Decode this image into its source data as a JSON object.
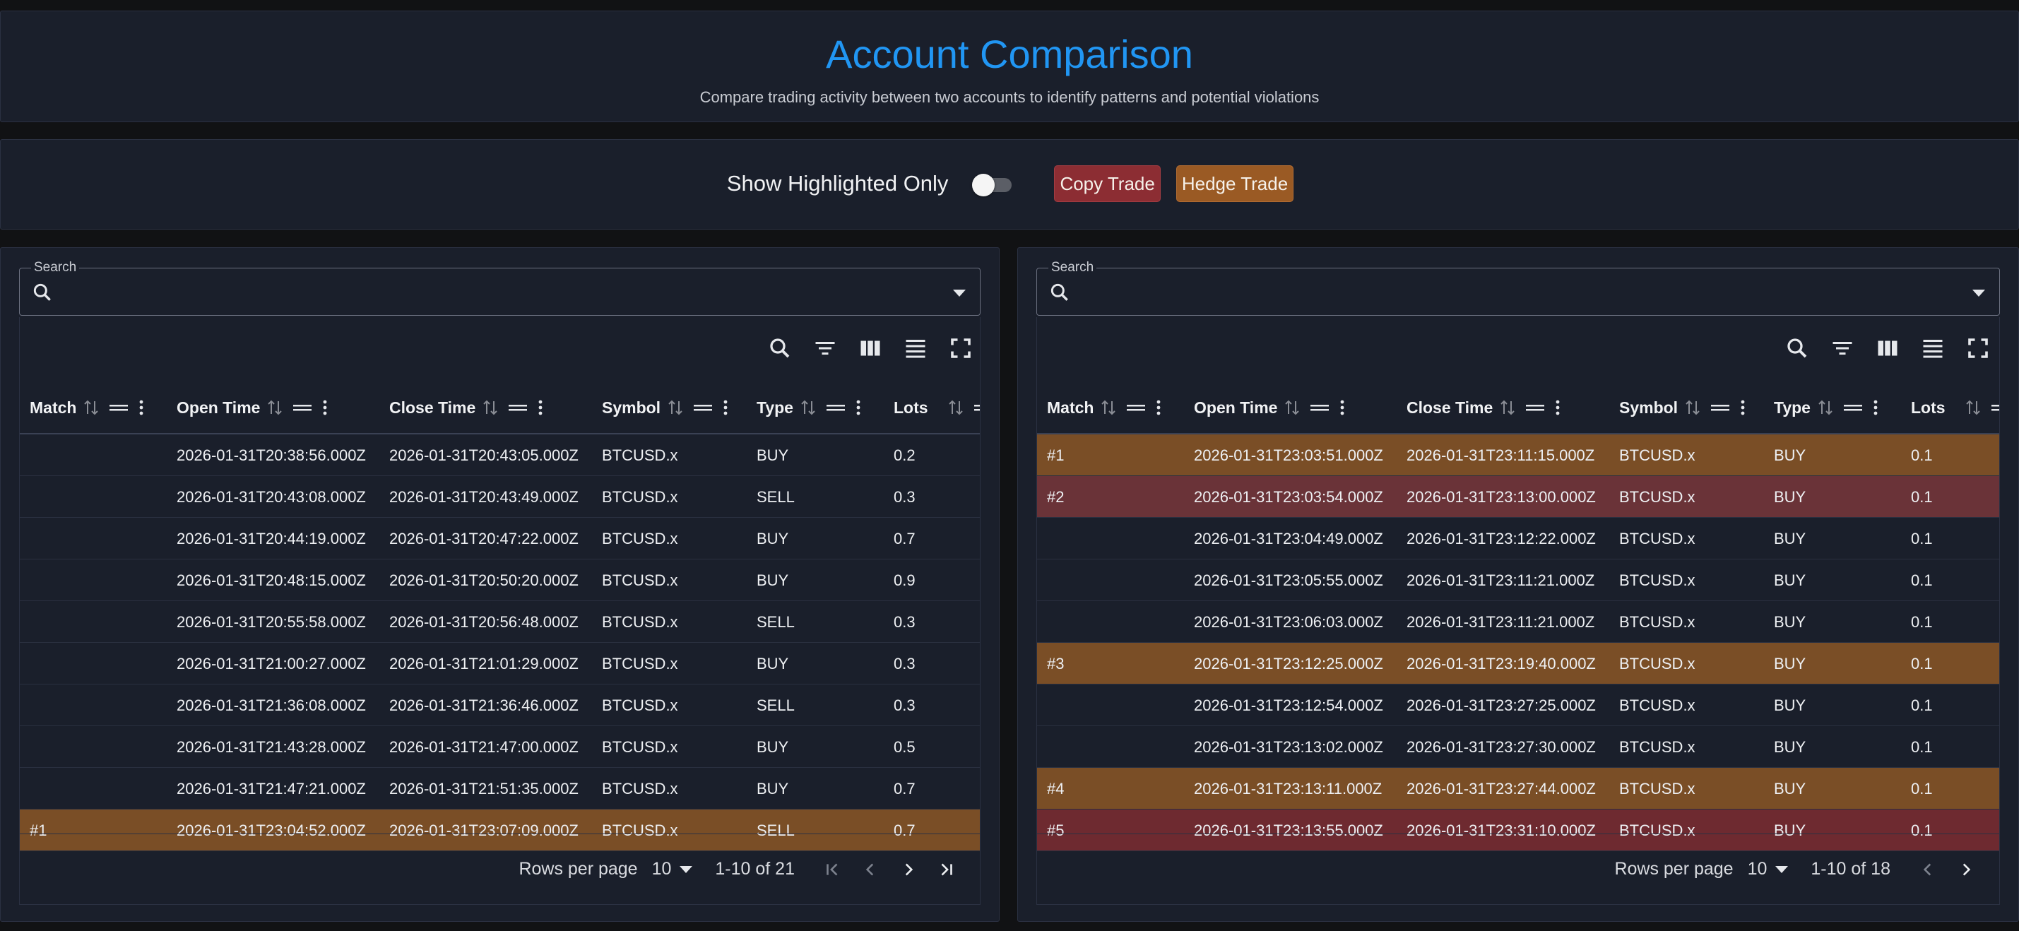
{
  "header": {
    "title": "Account Comparison",
    "subtitle": "Compare trading activity between two accounts to identify patterns and potential violations"
  },
  "controls": {
    "show_highlighted_label": "Show Highlighted Only",
    "show_highlighted_on": false,
    "legend": [
      {
        "label": "Copy Trade",
        "color": "#8c2d33"
      },
      {
        "label": "Hedge Trade",
        "color": "#9a5a24"
      }
    ]
  },
  "colors": {
    "accent": "#2196f3",
    "copy_row": "#6a3338",
    "hedge_row": "#7a4e26",
    "panel_bg": "#1a1f2b"
  },
  "columns": [
    "Match",
    "Open Time",
    "Close Time",
    "Symbol",
    "Type",
    "Lots"
  ],
  "left": {
    "search_label": "Search",
    "rows_per_page_label": "Rows per page",
    "rows_per_page": "10",
    "range": "1-10 of 21",
    "rows": [
      {
        "match": "",
        "open": "2026-01-31T20:38:56.000Z",
        "close": "2026-01-31T20:43:05.000Z",
        "symbol": "BTCUSD.x",
        "type": "BUY",
        "lots": "0.2",
        "hl": ""
      },
      {
        "match": "",
        "open": "2026-01-31T20:43:08.000Z",
        "close": "2026-01-31T20:43:49.000Z",
        "symbol": "BTCUSD.x",
        "type": "SELL",
        "lots": "0.3",
        "hl": ""
      },
      {
        "match": "",
        "open": "2026-01-31T20:44:19.000Z",
        "close": "2026-01-31T20:47:22.000Z",
        "symbol": "BTCUSD.x",
        "type": "BUY",
        "lots": "0.7",
        "hl": ""
      },
      {
        "match": "",
        "open": "2026-01-31T20:48:15.000Z",
        "close": "2026-01-31T20:50:20.000Z",
        "symbol": "BTCUSD.x",
        "type": "BUY",
        "lots": "0.9",
        "hl": ""
      },
      {
        "match": "",
        "open": "2026-01-31T20:55:58.000Z",
        "close": "2026-01-31T20:56:48.000Z",
        "symbol": "BTCUSD.x",
        "type": "SELL",
        "lots": "0.3",
        "hl": ""
      },
      {
        "match": "",
        "open": "2026-01-31T21:00:27.000Z",
        "close": "2026-01-31T21:01:29.000Z",
        "symbol": "BTCUSD.x",
        "type": "BUY",
        "lots": "0.3",
        "hl": ""
      },
      {
        "match": "",
        "open": "2026-01-31T21:36:08.000Z",
        "close": "2026-01-31T21:36:46.000Z",
        "symbol": "BTCUSD.x",
        "type": "SELL",
        "lots": "0.3",
        "hl": ""
      },
      {
        "match": "",
        "open": "2026-01-31T21:43:28.000Z",
        "close": "2026-01-31T21:47:00.000Z",
        "symbol": "BTCUSD.x",
        "type": "BUY",
        "lots": "0.5",
        "hl": ""
      },
      {
        "match": "",
        "open": "2026-01-31T21:47:21.000Z",
        "close": "2026-01-31T21:51:35.000Z",
        "symbol": "BTCUSD.x",
        "type": "BUY",
        "lots": "0.7",
        "hl": ""
      },
      {
        "match": "#1",
        "open": "2026-01-31T23:04:52.000Z",
        "close": "2026-01-31T23:07:09.000Z",
        "symbol": "BTCUSD.x",
        "type": "SELL",
        "lots": "0.7",
        "hl": "hedge"
      }
    ]
  },
  "right": {
    "search_label": "Search",
    "rows_per_page_label": "Rows per page",
    "rows_per_page": "10",
    "range": "1-10 of 18",
    "rows": [
      {
        "match": "#1",
        "open": "2026-01-31T23:03:51.000Z",
        "close": "2026-01-31T23:11:15.000Z",
        "symbol": "BTCUSD.x",
        "type": "BUY",
        "lots": "0.1",
        "hl": "hedge"
      },
      {
        "match": "#2",
        "open": "2026-01-31T23:03:54.000Z",
        "close": "2026-01-31T23:13:00.000Z",
        "symbol": "BTCUSD.x",
        "type": "BUY",
        "lots": "0.1",
        "hl": "copy"
      },
      {
        "match": "",
        "open": "2026-01-31T23:04:49.000Z",
        "close": "2026-01-31T23:12:22.000Z",
        "symbol": "BTCUSD.x",
        "type": "BUY",
        "lots": "0.1",
        "hl": ""
      },
      {
        "match": "",
        "open": "2026-01-31T23:05:55.000Z",
        "close": "2026-01-31T23:11:21.000Z",
        "symbol": "BTCUSD.x",
        "type": "BUY",
        "lots": "0.1",
        "hl": ""
      },
      {
        "match": "",
        "open": "2026-01-31T23:06:03.000Z",
        "close": "2026-01-31T23:11:21.000Z",
        "symbol": "BTCUSD.x",
        "type": "BUY",
        "lots": "0.1",
        "hl": ""
      },
      {
        "match": "#3",
        "open": "2026-01-31T23:12:25.000Z",
        "close": "2026-01-31T23:19:40.000Z",
        "symbol": "BTCUSD.x",
        "type": "BUY",
        "lots": "0.1",
        "hl": "hedge"
      },
      {
        "match": "",
        "open": "2026-01-31T23:12:54.000Z",
        "close": "2026-01-31T23:27:25.000Z",
        "symbol": "BTCUSD.x",
        "type": "BUY",
        "lots": "0.1",
        "hl": ""
      },
      {
        "match": "",
        "open": "2026-01-31T23:13:02.000Z",
        "close": "2026-01-31T23:27:30.000Z",
        "symbol": "BTCUSD.x",
        "type": "BUY",
        "lots": "0.1",
        "hl": ""
      },
      {
        "match": "#4",
        "open": "2026-01-31T23:13:11.000Z",
        "close": "2026-01-31T23:27:44.000Z",
        "symbol": "BTCUSD.x",
        "type": "BUY",
        "lots": "0.1",
        "hl": "hedge"
      },
      {
        "match": "#5",
        "open": "2026-01-31T23:13:55.000Z",
        "close": "2026-01-31T23:31:10.000Z",
        "symbol": "BTCUSD.x",
        "type": "BUY",
        "lots": "0.1",
        "hl": "copy-strong"
      }
    ]
  }
}
